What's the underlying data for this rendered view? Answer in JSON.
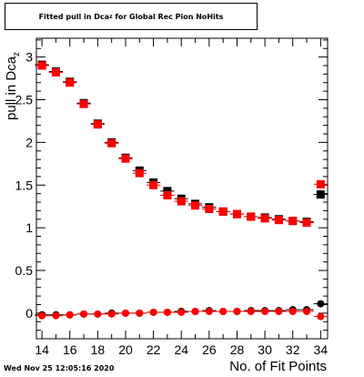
{
  "chart_data": {
    "type": "scatter",
    "title_main": "Fitted pull in Dca",
    "title_sub": "z",
    "title_rest": " for Global Rec Pion NoHits",
    "xlabel": "No. of Fit Points",
    "ylabel_main": "pull in Dca",
    "ylabel_sub": "z",
    "xlim": [
      13.6,
      34.5
    ],
    "ylim": [
      -0.3,
      3.22
    ],
    "x_ticks": [
      14,
      16,
      18,
      20,
      22,
      24,
      26,
      28,
      30,
      32,
      34
    ],
    "y_ticks": [
      0,
      0.5,
      1,
      1.5,
      2,
      2.5,
      3
    ],
    "x_tick_labels": [
      "14",
      "16",
      "18",
      "20",
      "22",
      "24",
      "26",
      "28",
      "30",
      "32",
      "34"
    ],
    "y_tick_labels": [
      "0",
      "0.5",
      "1",
      "1.5",
      "2",
      "2.5",
      "3"
    ],
    "grid": false,
    "series": [
      {
        "marker": "square",
        "color": "#000000",
        "x": [
          14,
          15,
          16,
          17,
          18,
          19,
          20,
          21,
          22,
          23,
          24,
          25,
          26,
          27,
          28,
          29,
          30,
          31,
          32,
          33,
          34
        ],
        "y": [
          2.91,
          2.83,
          2.71,
          2.46,
          2.22,
          2.0,
          1.82,
          1.67,
          1.53,
          1.43,
          1.34,
          1.28,
          1.24,
          1.19,
          1.16,
          1.13,
          1.12,
          1.1,
          1.08,
          1.07,
          1.39
        ]
      },
      {
        "marker": "square",
        "color": "#ff0000",
        "x": [
          14,
          15,
          16,
          17,
          18,
          19,
          20,
          21,
          22,
          23,
          24,
          25,
          26,
          27,
          28,
          29,
          30,
          31,
          32,
          33,
          34
        ],
        "y": [
          2.9,
          2.82,
          2.7,
          2.45,
          2.21,
          1.99,
          1.81,
          1.64,
          1.5,
          1.38,
          1.31,
          1.26,
          1.22,
          1.19,
          1.16,
          1.13,
          1.11,
          1.09,
          1.08,
          1.06,
          1.51
        ]
      },
      {
        "marker": "circle",
        "color": "#000000",
        "x": [
          14,
          15,
          16,
          17,
          18,
          19,
          20,
          21,
          22,
          23,
          24,
          25,
          26,
          27,
          28,
          29,
          30,
          31,
          32,
          33,
          34
        ],
        "y": [
          -0.02,
          -0.02,
          -0.02,
          -0.01,
          -0.01,
          0.0,
          0.0,
          0.0,
          0.01,
          0.01,
          0.02,
          0.02,
          0.03,
          0.02,
          0.02,
          0.03,
          0.03,
          0.03,
          0.04,
          0.04,
          0.11
        ]
      },
      {
        "marker": "circle",
        "color": "#ff0000",
        "x": [
          14,
          15,
          16,
          17,
          18,
          19,
          20,
          21,
          22,
          23,
          24,
          25,
          26,
          27,
          28,
          29,
          30,
          31,
          32,
          33,
          34
        ],
        "y": [
          -0.03,
          -0.03,
          -0.02,
          -0.01,
          -0.01,
          -0.01,
          0.0,
          0.0,
          0.01,
          0.01,
          0.01,
          0.02,
          0.02,
          0.02,
          0.02,
          0.02,
          0.02,
          0.02,
          0.02,
          0.02,
          -0.04
        ]
      }
    ]
  },
  "footer": {
    "timestamp": "Wed Nov 25 12:05:16 2020"
  }
}
